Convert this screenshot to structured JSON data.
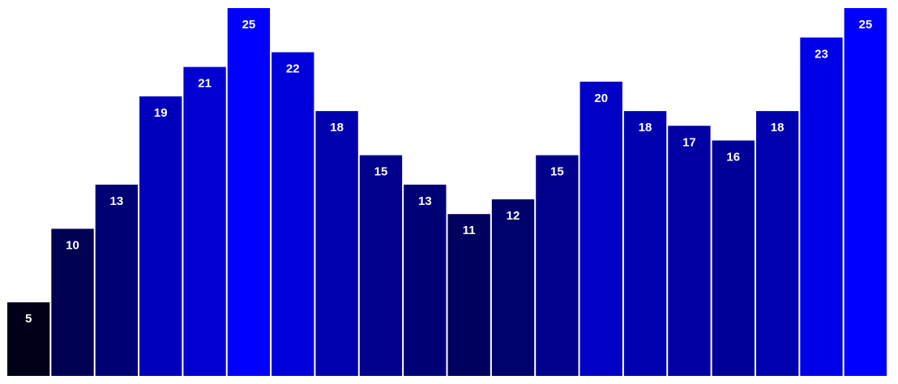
{
  "chart_data": {
    "type": "bar",
    "values": [
      5,
      10,
      13,
      19,
      21,
      25,
      22,
      18,
      15,
      13,
      11,
      12,
      15,
      20,
      18,
      17,
      16,
      18,
      23,
      25
    ],
    "title": "",
    "xlabel": "",
    "ylabel": "",
    "ylim": [
      0,
      25
    ],
    "grid": false,
    "color_scale": {
      "min_color": "#000019",
      "max_color": "#0000ff"
    },
    "label_color": "#ffffff",
    "background": "#ffffff"
  }
}
